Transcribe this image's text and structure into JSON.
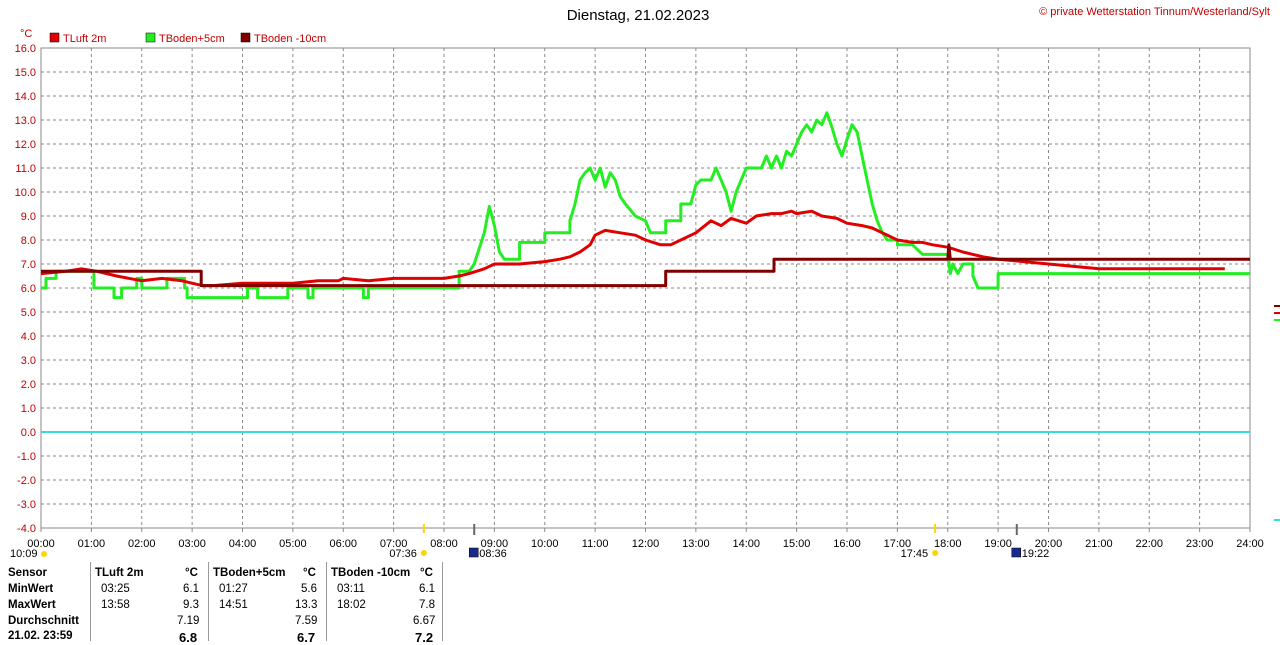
{
  "header": {
    "title": "Dienstag, 21.02.2023",
    "copyright": "© private Wetterstation Tinnum/Westerland/Sylt"
  },
  "colors": {
    "tluft": "#e00000",
    "tboden5": "#22ee22",
    "tboden10": "#800000",
    "zero_line": "#33dddd",
    "axis_text": "#c00000"
  },
  "chart_data": {
    "type": "line",
    "ylabel": "°C",
    "xlim": [
      0,
      24
    ],
    "ylim": [
      -4,
      16
    ],
    "grid": true,
    "legend": "top-left",
    "x_ticks": [
      "00:00",
      "01:00",
      "02:00",
      "03:00",
      "04:00",
      "05:00",
      "06:00",
      "07:00",
      "08:00",
      "09:00",
      "10:00",
      "11:00",
      "12:00",
      "13:00",
      "14:00",
      "15:00",
      "16:00",
      "17:00",
      "18:00",
      "19:00",
      "20:00",
      "21:00",
      "22:00",
      "23:00",
      "24:00"
    ],
    "y_ticks": [
      "16.0",
      "15.0",
      "14.0",
      "13.0",
      "12.0",
      "11.0",
      "10.0",
      "9.0",
      "8.0",
      "7.0",
      "6.0",
      "5.0",
      "4.0",
      "3.0",
      "2.0",
      "1.0",
      "0.0",
      "-1.0",
      "-2.0",
      "-3.0",
      "-4.0"
    ],
    "series": [
      {
        "name": "TLuft 2m",
        "color": "#e00000",
        "points": [
          [
            0,
            6.6
          ],
          [
            0.5,
            6.7
          ],
          [
            0.8,
            6.8
          ],
          [
            1.1,
            6.7
          ],
          [
            1.5,
            6.5
          ],
          [
            2.0,
            6.3
          ],
          [
            2.4,
            6.4
          ],
          [
            2.8,
            6.3
          ],
          [
            3.0,
            6.2
          ],
          [
            3.2,
            6.1
          ],
          [
            3.42,
            6.1
          ],
          [
            4.0,
            6.2
          ],
          [
            5.0,
            6.2
          ],
          [
            5.5,
            6.3
          ],
          [
            5.9,
            6.3
          ],
          [
            6.0,
            6.4
          ],
          [
            6.5,
            6.3
          ],
          [
            7.0,
            6.4
          ],
          [
            7.5,
            6.4
          ],
          [
            8.0,
            6.4
          ],
          [
            8.3,
            6.5
          ],
          [
            8.5,
            6.6
          ],
          [
            8.8,
            6.8
          ],
          [
            9.0,
            7.0
          ],
          [
            9.5,
            7.0
          ],
          [
            10.0,
            7.1
          ],
          [
            10.3,
            7.2
          ],
          [
            10.5,
            7.3
          ],
          [
            10.7,
            7.5
          ],
          [
            10.9,
            7.8
          ],
          [
            11.0,
            8.2
          ],
          [
            11.2,
            8.4
          ],
          [
            11.5,
            8.3
          ],
          [
            11.8,
            8.2
          ],
          [
            12.0,
            8.0
          ],
          [
            12.3,
            7.8
          ],
          [
            12.5,
            7.8
          ],
          [
            12.7,
            8.0
          ],
          [
            13.0,
            8.3
          ],
          [
            13.3,
            8.8
          ],
          [
            13.5,
            8.6
          ],
          [
            13.7,
            8.9
          ],
          [
            14.0,
            8.7
          ],
          [
            14.2,
            9.0
          ],
          [
            14.5,
            9.1
          ],
          [
            14.7,
            9.1
          ],
          [
            14.9,
            9.2
          ],
          [
            15.0,
            9.1
          ],
          [
            15.3,
            9.2
          ],
          [
            15.5,
            9.0
          ],
          [
            15.8,
            8.9
          ],
          [
            16.0,
            8.7
          ],
          [
            16.3,
            8.6
          ],
          [
            16.5,
            8.5
          ],
          [
            16.7,
            8.3
          ],
          [
            17.0,
            8.0
          ],
          [
            17.3,
            7.9
          ],
          [
            17.5,
            7.9
          ],
          [
            17.7,
            7.8
          ],
          [
            18.0,
            7.7
          ],
          [
            18.3,
            7.5
          ],
          [
            18.5,
            7.4
          ],
          [
            18.7,
            7.3
          ],
          [
            19.0,
            7.2
          ],
          [
            19.5,
            7.1
          ],
          [
            20.0,
            7.0
          ],
          [
            20.5,
            6.9
          ],
          [
            21.0,
            6.8
          ],
          [
            21.5,
            6.8
          ],
          [
            22.0,
            6.8
          ],
          [
            22.5,
            6.8
          ],
          [
            23.0,
            6.8
          ],
          [
            23.5,
            6.8
          ]
        ]
      },
      {
        "name": "TBoden+5cm",
        "color": "#22ee22",
        "points": [
          [
            0,
            6.0
          ],
          [
            0.1,
            6.0
          ],
          [
            0.1,
            6.4
          ],
          [
            0.3,
            6.4
          ],
          [
            0.3,
            6.7
          ],
          [
            1.05,
            6.7
          ],
          [
            1.05,
            6.0
          ],
          [
            1.45,
            6.0
          ],
          [
            1.45,
            5.6
          ],
          [
            1.6,
            5.6
          ],
          [
            1.6,
            6.0
          ],
          [
            1.9,
            6.0
          ],
          [
            1.9,
            6.4
          ],
          [
            2.0,
            6.4
          ],
          [
            2.0,
            6.0
          ],
          [
            2.5,
            6.0
          ],
          [
            2.5,
            6.4
          ],
          [
            2.85,
            6.4
          ],
          [
            2.85,
            6.0
          ],
          [
            2.9,
            6.0
          ],
          [
            2.9,
            5.6
          ],
          [
            4.1,
            5.6
          ],
          [
            4.1,
            6.0
          ],
          [
            4.3,
            6.0
          ],
          [
            4.3,
            5.6
          ],
          [
            4.9,
            5.6
          ],
          [
            4.9,
            6.0
          ],
          [
            5.0,
            6.0
          ],
          [
            5.3,
            6.0
          ],
          [
            5.3,
            5.6
          ],
          [
            5.4,
            5.6
          ],
          [
            5.4,
            6.0
          ],
          [
            6.4,
            6.0
          ],
          [
            6.4,
            5.6
          ],
          [
            6.5,
            5.6
          ],
          [
            6.5,
            6.0
          ],
          [
            8.3,
            6.0
          ],
          [
            8.3,
            6.7
          ],
          [
            8.5,
            6.7
          ],
          [
            8.6,
            7.0
          ],
          [
            8.8,
            8.3
          ],
          [
            8.9,
            9.4
          ],
          [
            9.0,
            8.6
          ],
          [
            9.1,
            7.5
          ],
          [
            9.2,
            7.2
          ],
          [
            9.5,
            7.2
          ],
          [
            9.5,
            7.9
          ],
          [
            9.7,
            7.9
          ],
          [
            10.0,
            7.9
          ],
          [
            10.0,
            8.3
          ],
          [
            10.5,
            8.3
          ],
          [
            10.5,
            8.8
          ],
          [
            10.6,
            9.5
          ],
          [
            10.7,
            10.5
          ],
          [
            10.8,
            10.8
          ],
          [
            10.9,
            11.0
          ],
          [
            11.0,
            10.5
          ],
          [
            11.1,
            11.0
          ],
          [
            11.2,
            10.2
          ],
          [
            11.3,
            10.8
          ],
          [
            11.4,
            10.5
          ],
          [
            11.5,
            9.8
          ],
          [
            11.6,
            9.5
          ],
          [
            11.8,
            9.0
          ],
          [
            12.0,
            8.8
          ],
          [
            12.1,
            8.3
          ],
          [
            12.4,
            8.3
          ],
          [
            12.4,
            8.8
          ],
          [
            12.7,
            8.8
          ],
          [
            12.7,
            9.5
          ],
          [
            12.9,
            9.5
          ],
          [
            13.0,
            10.3
          ],
          [
            13.1,
            10.5
          ],
          [
            13.3,
            10.5
          ],
          [
            13.4,
            11.0
          ],
          [
            13.5,
            10.5
          ],
          [
            13.6,
            10.0
          ],
          [
            13.7,
            9.2
          ],
          [
            13.8,
            10.0
          ],
          [
            13.9,
            10.5
          ],
          [
            14.0,
            11.0
          ],
          [
            14.3,
            11.0
          ],
          [
            14.4,
            11.5
          ],
          [
            14.5,
            11.0
          ],
          [
            14.6,
            11.5
          ],
          [
            14.7,
            11.0
          ],
          [
            14.8,
            11.7
          ],
          [
            14.9,
            11.5
          ],
          [
            15.0,
            12.0
          ],
          [
            15.1,
            12.5
          ],
          [
            15.2,
            12.8
          ],
          [
            15.3,
            12.5
          ],
          [
            15.4,
            13.0
          ],
          [
            15.5,
            12.8
          ],
          [
            15.6,
            13.3
          ],
          [
            15.7,
            12.7
          ],
          [
            15.8,
            12.0
          ],
          [
            15.9,
            11.5
          ],
          [
            16.0,
            12.2
          ],
          [
            16.1,
            12.8
          ],
          [
            16.2,
            12.5
          ],
          [
            16.3,
            11.5
          ],
          [
            16.4,
            10.5
          ],
          [
            16.5,
            9.5
          ],
          [
            16.6,
            8.8
          ],
          [
            16.7,
            8.3
          ],
          [
            16.8,
            8.0
          ],
          [
            17.0,
            8.0
          ],
          [
            17.0,
            7.8
          ],
          [
            17.3,
            7.8
          ],
          [
            17.5,
            7.4
          ],
          [
            17.6,
            7.4
          ],
          [
            18.0,
            7.4
          ],
          [
            18.05,
            6.6
          ],
          [
            18.1,
            7.0
          ],
          [
            18.2,
            6.6
          ],
          [
            18.3,
            7.0
          ],
          [
            18.5,
            7.0
          ],
          [
            18.5,
            6.5
          ],
          [
            18.6,
            6.0
          ],
          [
            19.0,
            6.0
          ],
          [
            19.0,
            6.6
          ],
          [
            19.2,
            6.6
          ],
          [
            19.6,
            6.6
          ],
          [
            20.0,
            6.6
          ],
          [
            21.0,
            6.6
          ],
          [
            22.0,
            6.6
          ],
          [
            23.0,
            6.6
          ],
          [
            24.0,
            6.6
          ]
        ]
      },
      {
        "name": "TBoden -10cm",
        "color": "#800000",
        "points": [
          [
            0,
            6.7
          ],
          [
            3.18,
            6.7
          ],
          [
            3.18,
            6.1
          ],
          [
            12.4,
            6.1
          ],
          [
            12.4,
            6.7
          ],
          [
            14.55,
            6.7
          ],
          [
            14.55,
            7.2
          ],
          [
            18.0,
            7.2
          ],
          [
            18.02,
            7.8
          ],
          [
            18.05,
            7.2
          ],
          [
            24.0,
            7.2
          ]
        ]
      }
    ],
    "zero_line": 0.0,
    "sun_events": [
      {
        "label": "07:36",
        "hour": 7.6
      },
      {
        "label": "17:45",
        "hour": 17.75
      }
    ],
    "moon_events": [
      {
        "label": "08:36",
        "hour": 8.6
      },
      {
        "label": "19:22",
        "hour": 19.37
      }
    ],
    "daylight_label": "10:09"
  },
  "stats": {
    "headers": [
      "Sensor",
      "TLuft 2m",
      "°C",
      "TBoden+5cm",
      "°C",
      "TBoden -10cm",
      "°C"
    ],
    "rows": [
      {
        "label": "MinWert",
        "tl_time": "03:25",
        "tl_val": "6.1",
        "t5_time": "01:27",
        "t5_val": "5.6",
        "t10_time": "03:11",
        "t10_val": "6.1"
      },
      {
        "label": "MaxWert",
        "tl_time": "13:58",
        "tl_val": "9.3",
        "t5_time": "14:51",
        "t5_val": "13.3",
        "t10_time": "18:02",
        "t10_val": "7.8"
      },
      {
        "label": "Durchschnitt",
        "tl_time": "",
        "tl_val": "7.19",
        "t5_time": "",
        "t5_val": "7.59",
        "t10_time": "",
        "t10_val": "6.67"
      },
      {
        "label": "21.02. 23:59",
        "tl_time": "",
        "tl_val": "6.8",
        "t5_time": "",
        "t5_val": "6.7",
        "t10_time": "",
        "t10_val": "7.2"
      }
    ]
  }
}
